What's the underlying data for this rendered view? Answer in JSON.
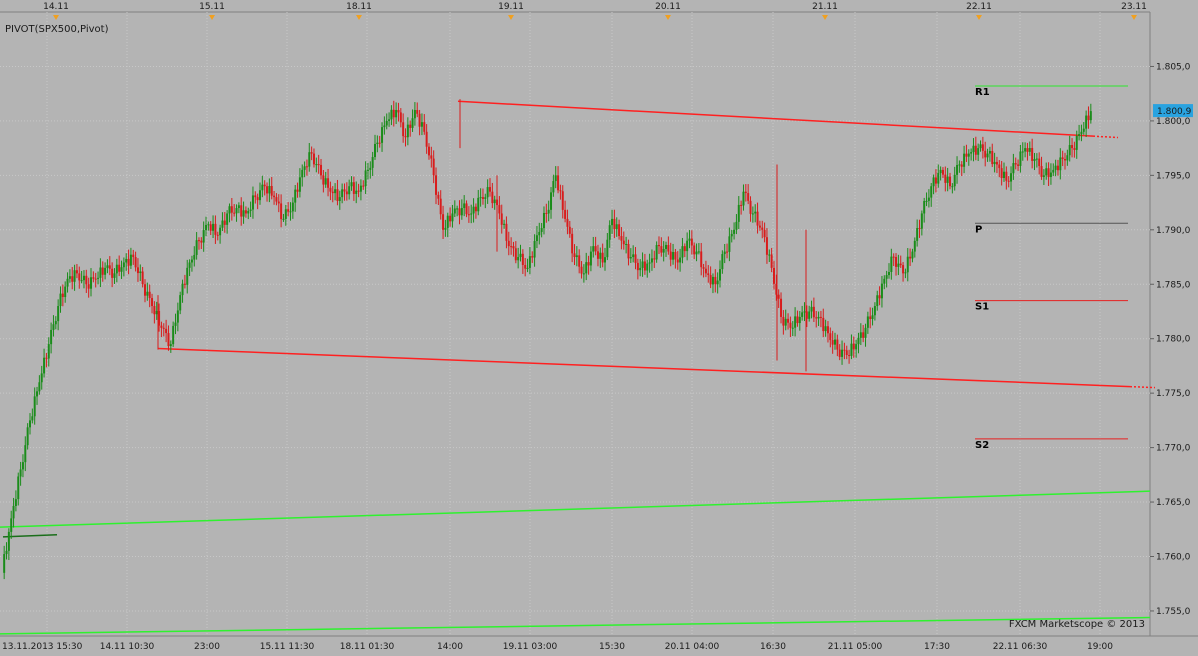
{
  "indicator_label": "PIVOT(SPX500,Pivot)",
  "watermark": "FXCM Marketscope © 2013",
  "price_tag": "1.800,9",
  "colors": {
    "background": "#b4b4b4",
    "bull": "#1a8c1a",
    "bear": "#d81c1c",
    "pivot_r1": "#2ee62e",
    "pivot_p": "#555555",
    "pivot_s": "#e62020",
    "channel": "#ff2020",
    "long_trend": "#2ef22e",
    "price_tag_bg": "#29a3e0"
  },
  "top_dates": [
    "14.11",
    "15.11",
    "18.11",
    "19.11",
    "20.11",
    "21.11",
    "22.11",
    "23.11"
  ],
  "bottom_times": [
    "13.11.2013 15:30",
    "14.11 10:30",
    "23:00",
    "15.11 11:30",
    "18.11 01:30",
    "14:00",
    "19.11 03:00",
    "15:30",
    "20.11 04:00",
    "16:30",
    "21.11 05:00",
    "17:30",
    "22.11 06:30",
    "19:00"
  ],
  "y_ticks": [
    "1.805,0",
    "1.800,0",
    "1.795,0",
    "1.790,0",
    "1.785,0",
    "1.780,0",
    "1.775,0",
    "1.770,0",
    "1.765,0",
    "1.760,0",
    "1.755,0"
  ],
  "pivot_labels": [
    "R1",
    "P",
    "S1",
    "S2"
  ],
  "chart_data": {
    "type": "candlestick",
    "title": "PIVOT(SPX500,Pivot)",
    "ylim": [
      1752.7,
      1810.0
    ],
    "y_ticks": [
      1805,
      1800,
      1795,
      1790,
      1785,
      1780,
      1775,
      1770,
      1765,
      1760,
      1755
    ],
    "x_labels": [
      "13.11.2013 15:30",
      "14.11 10:30",
      "23:00",
      "15.11 11:30",
      "18.11 01:30",
      "14:00",
      "19.11 03:00",
      "15:30",
      "20.11 04:00",
      "16:30",
      "21.11 05:00",
      "17:30",
      "22.11 06:30",
      "19:00"
    ],
    "last_price": 1800.9,
    "price_path": [
      1758.5,
      1763.5,
      1768.0,
      1772.5,
      1776.0,
      1779.5,
      1783.0,
      1785.5,
      1786.0,
      1785.0,
      1785.5,
      1786.5,
      1786.0,
      1787.0,
      1787.5,
      1785.0,
      1783.0,
      1781.0,
      1779.5,
      1784.0,
      1787.0,
      1789.0,
      1790.5,
      1789.5,
      1791.5,
      1792.0,
      1791.5,
      1793.0,
      1794.0,
      1793.0,
      1791.0,
      1792.5,
      1795.5,
      1797.0,
      1795.0,
      1793.5,
      1793.0,
      1794.0,
      1793.5,
      1795.5,
      1798.0,
      1800.0,
      1801.0,
      1798.5,
      1801.0,
      1799.0,
      1795.0,
      1790.0,
      1791.5,
      1792.0,
      1791.5,
      1793.0,
      1793.5,
      1791.5,
      1788.5,
      1787.5,
      1786.5,
      1789.5,
      1791.5,
      1795.0,
      1791.0,
      1787.5,
      1786.0,
      1788.5,
      1787.0,
      1791.0,
      1789.0,
      1787.5,
      1786.5,
      1787.0,
      1788.5,
      1788.0,
      1787.0,
      1789.0,
      1788.0,
      1786.0,
      1785.0,
      1788.0,
      1790.0,
      1793.5,
      1791.5,
      1790.0,
      1786.5,
      1782.0,
      1781.0,
      1782.0,
      1782.5,
      1782.0,
      1780.5,
      1779.0,
      1778.5,
      1779.5,
      1781.0,
      1783.0,
      1785.5,
      1787.5,
      1786.0,
      1788.0,
      1791.5,
      1794.0,
      1795.5,
      1794.0,
      1796.0,
      1797.0,
      1797.5,
      1797.0,
      1796.0,
      1794.5,
      1796.0,
      1797.5,
      1796.5,
      1795.0,
      1795.5,
      1796.5,
      1797.5,
      1799.0,
      1800.9
    ],
    "pivot_levels": [
      {
        "name": "R1",
        "value": 1803.2
      },
      {
        "name": "P",
        "value": 1790.6
      },
      {
        "name": "S1",
        "value": 1783.5
      },
      {
        "name": "S2",
        "value": 1770.8
      }
    ],
    "trendlines": [
      {
        "kind": "channel-top",
        "from": {
          "x": "18.11 14:00",
          "y": 1801.8
        },
        "to": {
          "x": "22.11 19:00",
          "y": 1798.6
        }
      },
      {
        "kind": "channel-bottom",
        "from": {
          "x": "14.11 10:30",
          "y": 1779.1
        },
        "to": {
          "x": "22.11 19:00",
          "y": 1775.6
        }
      },
      {
        "kind": "long-trend",
        "from": {
          "x": "13.11.2013 15:30",
          "y": 1762.7
        },
        "to": {
          "x": "23.11",
          "y": 1766.0
        }
      },
      {
        "kind": "long-trend",
        "from": {
          "x": "13.11.2013 15:30",
          "y": 1752.9
        },
        "to": {
          "x": "23.11",
          "y": 1754.4
        }
      }
    ],
    "grid": true
  }
}
